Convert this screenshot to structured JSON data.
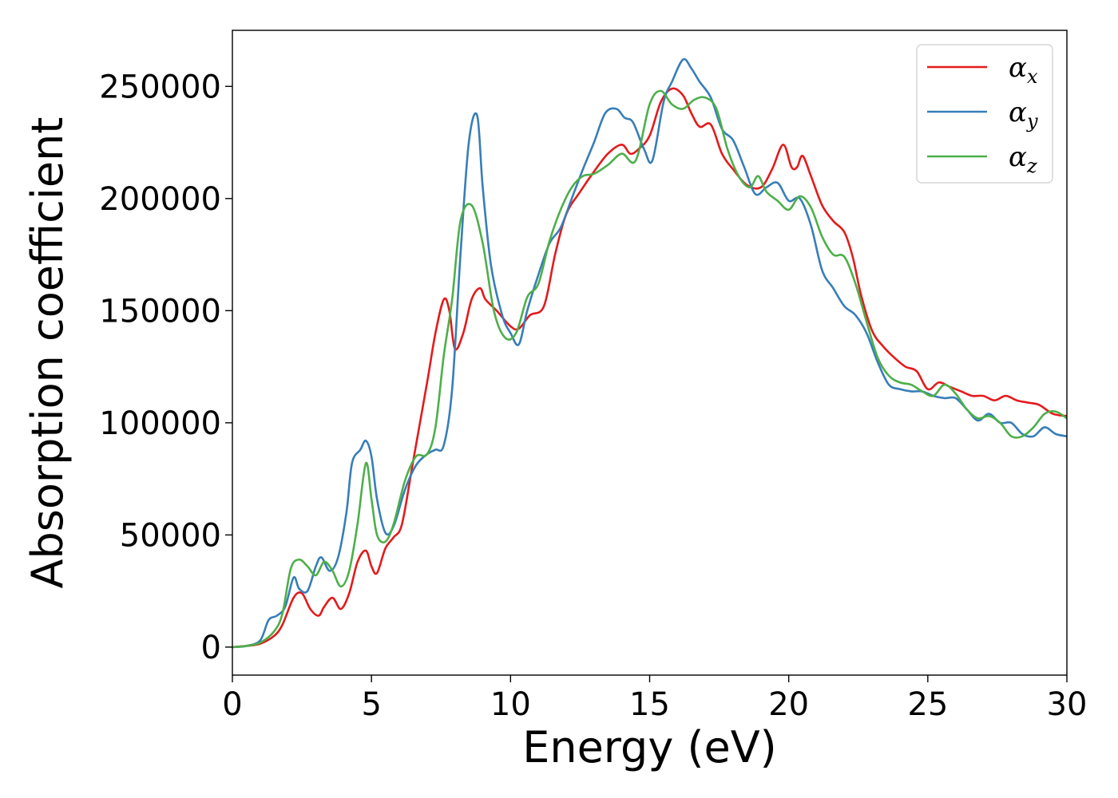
{
  "chart_data": {
    "type": "line",
    "title": "",
    "xlabel": "Energy (eV)",
    "ylabel": "Absorption coefficient",
    "xlim": [
      0,
      30
    ],
    "ylim": [
      -12500,
      275000
    ],
    "xticks": [
      0,
      5,
      10,
      15,
      20,
      25,
      30
    ],
    "yticks": [
      0,
      50000,
      100000,
      150000,
      200000,
      250000
    ],
    "grid": false,
    "legend_position": "top-right",
    "series": [
      {
        "name": "α",
        "subscript": "x",
        "color": "#e41a1c",
        "x": [
          0,
          0.5,
          1,
          1.5,
          1.8,
          2.2,
          2.5,
          2.8,
          3.1,
          3.3,
          3.6,
          3.9,
          4.2,
          4.5,
          4.8,
          5.0,
          5.2,
          5.5,
          5.8,
          6.1,
          6.5,
          7.0,
          7.3,
          7.6,
          7.8,
          8.0,
          8.3,
          8.6,
          8.9,
          9.1,
          9.5,
          10.0,
          10.3,
          10.7,
          11.2,
          11.6,
          12.0,
          12.5,
          13.0,
          13.5,
          14.0,
          14.3,
          14.6,
          15.0,
          15.4,
          15.8,
          16.2,
          16.5,
          16.8,
          17.2,
          17.6,
          18.0,
          18.5,
          19.0,
          19.4,
          19.8,
          20.1,
          20.3,
          20.5,
          20.8,
          21.2,
          21.6,
          22.0,
          22.3,
          22.6,
          23.0,
          23.4,
          23.8,
          24.2,
          24.6,
          25.0,
          25.4,
          25.8,
          26.2,
          26.6,
          27.0,
          27.4,
          27.8,
          28.2,
          28.6,
          29.0,
          29.5,
          30.0
        ],
        "y": [
          0,
          500,
          1500,
          5000,
          10000,
          22000,
          24000,
          17000,
          14000,
          18000,
          22000,
          17000,
          24000,
          38000,
          43000,
          36000,
          33000,
          44000,
          49000,
          55000,
          83000,
          118000,
          140000,
          155000,
          150000,
          133000,
          140000,
          155000,
          160000,
          155000,
          150000,
          143000,
          142000,
          148000,
          152000,
          175000,
          193000,
          203000,
          212000,
          220000,
          224000,
          220000,
          222000,
          228000,
          243000,
          249000,
          246000,
          238000,
          232000,
          233000,
          220000,
          213000,
          206000,
          205000,
          213000,
          224000,
          214000,
          214000,
          219000,
          210000,
          197000,
          190000,
          185000,
          174000,
          157000,
          141000,
          134000,
          129000,
          125000,
          123000,
          115000,
          118000,
          116000,
          114000,
          112000,
          112000,
          110000,
          112000,
          110000,
          109000,
          108000,
          104000,
          103000
        ]
      },
      {
        "name": "α",
        "subscript": "y",
        "color": "#377eb8",
        "x": [
          0,
          0.5,
          1,
          1.3,
          1.6,
          1.9,
          2.2,
          2.4,
          2.7,
          3.0,
          3.2,
          3.5,
          3.8,
          4.1,
          4.3,
          4.6,
          4.8,
          5.0,
          5.2,
          5.5,
          5.8,
          6.2,
          6.6,
          7.0,
          7.3,
          7.6,
          7.9,
          8.2,
          8.5,
          8.8,
          9.0,
          9.3,
          9.7,
          10.0,
          10.3,
          10.6,
          11.0,
          11.4,
          11.8,
          12.2,
          12.6,
          13.0,
          13.4,
          13.8,
          14.1,
          14.4,
          14.8,
          15.1,
          15.5,
          15.8,
          16.2,
          16.5,
          16.8,
          17.2,
          17.6,
          18.0,
          18.4,
          18.8,
          19.2,
          19.6,
          20.0,
          20.4,
          20.8,
          21.2,
          21.6,
          22.0,
          22.4,
          22.8,
          23.2,
          23.6,
          24.0,
          24.4,
          24.8,
          25.2,
          25.6,
          26.0,
          26.4,
          26.8,
          27.2,
          27.6,
          28.0,
          28.4,
          28.8,
          29.2,
          29.6,
          30.0
        ],
        "y": [
          0,
          500,
          3000,
          12000,
          14000,
          18000,
          31000,
          26000,
          25000,
          36000,
          40000,
          34000,
          40000,
          60000,
          82000,
          88000,
          92000,
          85000,
          66000,
          51000,
          54000,
          70000,
          81000,
          86000,
          88000,
          90000,
          115000,
          175000,
          225000,
          237000,
          205000,
          170000,
          148000,
          140000,
          135000,
          150000,
          166000,
          180000,
          187000,
          200000,
          213000,
          225000,
          238000,
          240000,
          236000,
          234000,
          222000,
          217000,
          243000,
          252000,
          262000,
          258000,
          252000,
          245000,
          231000,
          226000,
          214000,
          202000,
          205000,
          207000,
          199000,
          200000,
          188000,
          168000,
          160000,
          152000,
          148000,
          140000,
          127000,
          117000,
          115000,
          114000,
          114000,
          112000,
          111000,
          111000,
          106000,
          101000,
          104000,
          100000,
          100000,
          95000,
          94000,
          98000,
          95000,
          94000
        ]
      },
      {
        "name": "α",
        "subscript": "z",
        "color": "#4daf4a",
        "x": [
          0,
          0.5,
          1,
          1.5,
          1.8,
          2.1,
          2.4,
          2.7,
          3.0,
          3.3,
          3.6,
          3.9,
          4.2,
          4.5,
          4.8,
          5.0,
          5.2,
          5.5,
          5.8,
          6.2,
          6.6,
          7.0,
          7.3,
          7.6,
          7.9,
          8.2,
          8.6,
          9.0,
          9.4,
          9.8,
          10.2,
          10.6,
          11.0,
          11.4,
          11.8,
          12.2,
          12.6,
          13.0,
          13.5,
          14.0,
          14.5,
          15.0,
          15.4,
          15.8,
          16.2,
          16.6,
          17.0,
          17.4,
          17.8,
          18.2,
          18.6,
          18.9,
          19.2,
          19.6,
          20.0,
          20.4,
          20.8,
          21.2,
          21.6,
          22.0,
          22.4,
          22.8,
          23.2,
          23.6,
          24.0,
          24.4,
          24.8,
          25.2,
          25.6,
          26.0,
          26.4,
          26.8,
          27.2,
          27.6,
          28.0,
          28.4,
          28.8,
          29.2,
          29.6,
          30.0
        ],
        "y": [
          0,
          500,
          2000,
          7000,
          15000,
          35000,
          39000,
          36000,
          32000,
          38000,
          34000,
          27000,
          34000,
          55000,
          82000,
          66000,
          50000,
          47000,
          55000,
          74000,
          85000,
          86000,
          98000,
          130000,
          155000,
          190000,
          197000,
          180000,
          150000,
          138000,
          140000,
          156000,
          162000,
          181000,
          195000,
          205000,
          210000,
          211000,
          215000,
          220000,
          217000,
          242000,
          248000,
          242000,
          240000,
          244000,
          245000,
          240000,
          222000,
          210000,
          205000,
          210000,
          203000,
          199000,
          195000,
          201000,
          196000,
          183000,
          175000,
          174000,
          162000,
          145000,
          129000,
          121000,
          118000,
          117000,
          114000,
          112000,
          117000,
          113000,
          106000,
          102000,
          103000,
          100000,
          94000,
          94000,
          98000,
          104000,
          105000,
          102000
        ]
      }
    ]
  }
}
